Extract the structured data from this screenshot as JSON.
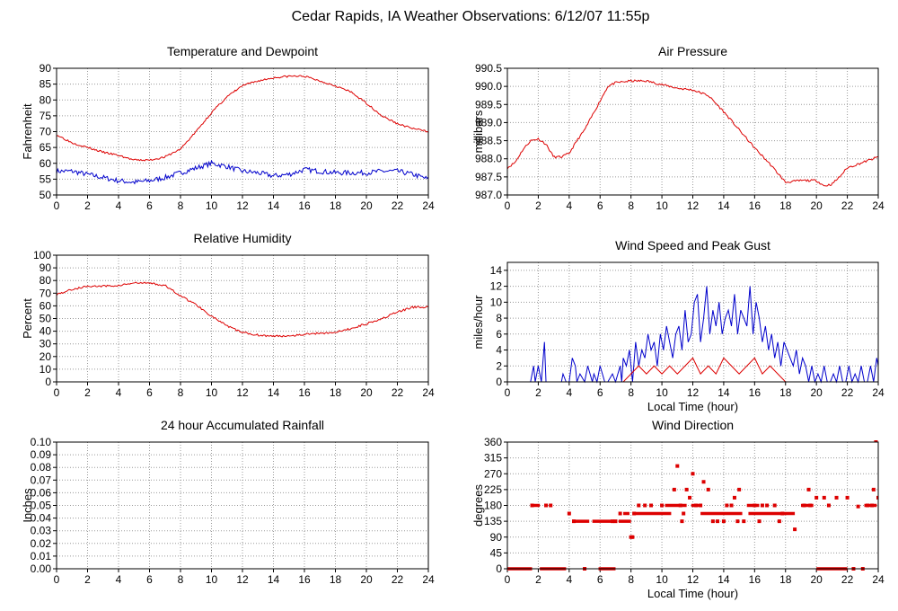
{
  "page": {
    "title": "Cedar Rapids, IA Weather Observations: 6/12/07 11:55p"
  },
  "colors": {
    "red": "#dd0000",
    "blue": "#0000cc",
    "grid": "#9a9a9a"
  },
  "chart_data": [
    {
      "id": "temperature",
      "type": "line",
      "title": "Temperature and Dewpoint",
      "xlabel": "",
      "ylabel": "Fahrenheit",
      "xlim": [
        0,
        24
      ],
      "ylim": [
        50,
        90
      ],
      "x_ticks": [
        0,
        2,
        4,
        6,
        8,
        10,
        12,
        14,
        16,
        18,
        20,
        22,
        24
      ],
      "y_ticks": [
        50,
        55,
        60,
        65,
        70,
        75,
        80,
        85,
        90
      ],
      "y_decimals": 0,
      "grid": true,
      "series": [
        {
          "color": "#dd0000",
          "noise": 0.3,
          "seed": 3,
          "x": [
            0,
            1,
            2,
            3,
            4,
            5,
            6,
            7,
            8,
            9,
            10,
            11,
            12,
            13,
            14,
            15,
            16,
            17,
            18,
            19,
            20,
            21,
            22,
            23,
            24
          ],
          "values": [
            69,
            66.5,
            65,
            63.5,
            62.5,
            61,
            61,
            62,
            64.5,
            70,
            76,
            81,
            84.5,
            86,
            87,
            87.5,
            87.5,
            86,
            84.5,
            82.5,
            79,
            75,
            72.5,
            71,
            70
          ]
        },
        {
          "color": "#0000cc",
          "noise": 0.8,
          "seed": 7,
          "x": [
            0,
            1,
            2,
            3,
            4,
            5,
            6,
            7,
            8,
            9,
            10,
            11,
            12,
            13,
            14,
            15,
            16,
            17,
            18,
            19,
            20,
            21,
            22,
            23,
            24
          ],
          "values": [
            57.5,
            57.5,
            56.5,
            55.5,
            54.5,
            54,
            54.5,
            55.5,
            57,
            58.5,
            60,
            59,
            57.5,
            57,
            56,
            56.5,
            58,
            57.5,
            57,
            57,
            57,
            57.5,
            57.5,
            56.5,
            55
          ]
        }
      ]
    },
    {
      "id": "pressure",
      "type": "line",
      "title": "Air Pressure",
      "xlabel": "",
      "ylabel": "millibars",
      "xlim": [
        0,
        24
      ],
      "ylim": [
        987.0,
        990.5
      ],
      "x_ticks": [
        0,
        2,
        4,
        6,
        8,
        10,
        12,
        14,
        16,
        18,
        20,
        22,
        24
      ],
      "y_ticks": [
        987.0,
        987.5,
        988.0,
        988.5,
        989.0,
        989.5,
        990.0,
        990.5
      ],
      "y_decimals": 1,
      "grid": true,
      "series": [
        {
          "color": "#dd0000",
          "noise": 0.03,
          "seed": 11,
          "x": [
            0,
            0.5,
            1,
            1.5,
            2,
            2.5,
            3,
            3.5,
            4,
            4.5,
            5,
            5.5,
            6,
            6.5,
            7,
            8,
            9,
            10,
            11,
            12,
            13,
            14,
            15,
            16,
            17,
            18,
            19,
            20,
            20.5,
            21,
            21.5,
            22,
            23,
            24
          ],
          "values": [
            987.75,
            987.9,
            988.25,
            988.5,
            988.55,
            988.4,
            988.05,
            988.05,
            988.15,
            988.5,
            988.8,
            989.2,
            989.6,
            990.0,
            990.1,
            990.15,
            990.15,
            990.05,
            989.95,
            989.9,
            989.75,
            989.3,
            988.8,
            988.3,
            987.85,
            987.35,
            987.4,
            987.4,
            987.25,
            987.3,
            987.5,
            987.75,
            987.9,
            988.05
          ]
        }
      ]
    },
    {
      "id": "humidity",
      "type": "line",
      "title": "Relative Humidity",
      "xlabel": "",
      "ylabel": "Percent",
      "xlim": [
        0,
        24
      ],
      "ylim": [
        0,
        100
      ],
      "x_ticks": [
        0,
        2,
        4,
        6,
        8,
        10,
        12,
        14,
        16,
        18,
        20,
        22,
        24
      ],
      "y_ticks": [
        0,
        10,
        20,
        30,
        40,
        50,
        60,
        70,
        80,
        90,
        100
      ],
      "y_decimals": 0,
      "grid": true,
      "series": [
        {
          "color": "#dd0000",
          "noise": 0.8,
          "seed": 5,
          "x": [
            0,
            1,
            2,
            3,
            4,
            5,
            6,
            7,
            8,
            9,
            10,
            11,
            12,
            13,
            14,
            15,
            16,
            17,
            18,
            19,
            20,
            21,
            22,
            23,
            24
          ],
          "values": [
            69,
            73,
            75.5,
            75.5,
            76,
            78,
            78,
            76,
            68,
            61,
            52,
            44,
            39,
            37,
            36,
            36.5,
            37.5,
            38.5,
            39,
            42,
            46,
            50,
            55,
            59,
            59
          ]
        }
      ]
    },
    {
      "id": "wind-speed",
      "type": "line",
      "title": "Wind Speed and Peak Gust",
      "xlabel": "Local Time (hour)",
      "ylabel": "miles/hour",
      "xlim": [
        0,
        24
      ],
      "ylim": [
        0,
        15
      ],
      "x_ticks": [
        0,
        2,
        4,
        6,
        8,
        10,
        12,
        14,
        16,
        18,
        20,
        22,
        24
      ],
      "y_ticks": [
        0,
        2,
        4,
        6,
        8,
        10,
        12,
        14
      ],
      "y_decimals": 0,
      "grid": true,
      "series": [
        {
          "color": "#0000cc",
          "noise": 0,
          "seed": 0,
          "x": [
            0,
            1.5,
            1.6,
            1.7,
            1.8,
            2.0,
            2.2,
            2.4,
            2.5,
            2.6,
            3.0,
            3.5,
            3.6,
            3.8,
            4.0,
            4.2,
            4.4,
            4.5,
            4.7,
            5.0,
            5.2,
            5.5,
            5.6,
            5.8,
            6.0,
            6.3,
            6.5,
            6.8,
            7.0,
            7.3,
            7.4,
            7.5,
            7.7,
            7.9,
            8.1,
            8.3,
            8.5,
            8.7,
            8.9,
            9.1,
            9.3,
            9.5,
            9.7,
            9.9,
            10.1,
            10.3,
            10.5,
            10.7,
            10.9,
            11.1,
            11.3,
            11.5,
            11.7,
            11.9,
            12.1,
            12.3,
            12.5,
            12.7,
            12.9,
            13.1,
            13.3,
            13.5,
            13.7,
            13.9,
            14.1,
            14.3,
            14.5,
            14.7,
            14.9,
            15.1,
            15.3,
            15.5,
            15.7,
            15.9,
            16.1,
            16.3,
            16.5,
            16.7,
            16.9,
            17.1,
            17.3,
            17.5,
            17.7,
            17.9,
            18.1,
            18.3,
            18.5,
            18.7,
            18.9,
            19.1,
            19.3,
            19.5,
            19.7,
            19.9,
            20.1,
            20.3,
            20.5,
            20.7,
            20.9,
            21.1,
            21.3,
            21.5,
            21.7,
            21.9,
            22.1,
            22.3,
            22.5,
            22.7,
            22.9,
            23.1,
            23.3,
            23.5,
            23.7,
            23.9,
            24
          ],
          "values": [
            0,
            0,
            1,
            2,
            0,
            2,
            0,
            5,
            0,
            0,
            0,
            0,
            1,
            0,
            0,
            3,
            2,
            0,
            1,
            0,
            2,
            0,
            1,
            0,
            2,
            0,
            0,
            1,
            0,
            2,
            0,
            3,
            2,
            4,
            0,
            5,
            2,
            4,
            3,
            6,
            4,
            5,
            2,
            6,
            4,
            7,
            5,
            3,
            6,
            7,
            4,
            9,
            5,
            6,
            10,
            11,
            5,
            8,
            12,
            6,
            9,
            7,
            10,
            6,
            8,
            9,
            7,
            11,
            6,
            9,
            8,
            7,
            12,
            6,
            10,
            8,
            5,
            7,
            4,
            6,
            3,
            5,
            2,
            5,
            4,
            3,
            2,
            4,
            1,
            3,
            2,
            0,
            2,
            0,
            1,
            0,
            2,
            0,
            0,
            1,
            0,
            2,
            0,
            0,
            2,
            0,
            1,
            0,
            2,
            0,
            0,
            2,
            0,
            3,
            2
          ]
        },
        {
          "color": "#dd0000",
          "noise": 0,
          "seed": 0,
          "x": [
            0,
            7.5,
            8.0,
            8.5,
            9.0,
            9.5,
            10.0,
            10.5,
            11.0,
            11.5,
            12.0,
            12.5,
            13.0,
            13.5,
            14.0,
            14.5,
            15.0,
            15.5,
            16.0,
            16.5,
            17.0,
            17.5,
            18.0,
            18.5,
            19.0,
            24
          ],
          "values": [
            0,
            0,
            1,
            2,
            1,
            2,
            1,
            2,
            1,
            2,
            3,
            1,
            2,
            1,
            3,
            2,
            1,
            2,
            3,
            1,
            2,
            1,
            0,
            0,
            0,
            0
          ]
        }
      ]
    },
    {
      "id": "rainfall",
      "type": "line",
      "title": "24 hour Accumulated Rainfall",
      "xlabel": "",
      "ylabel": "Inches",
      "xlim": [
        0,
        24
      ],
      "ylim": [
        0,
        0.1
      ],
      "x_ticks": [
        0,
        2,
        4,
        6,
        8,
        10,
        12,
        14,
        16,
        18,
        20,
        22,
        24
      ],
      "y_ticks": [
        0.0,
        0.01,
        0.02,
        0.03,
        0.04,
        0.05,
        0.06,
        0.07,
        0.08,
        0.09,
        0.1
      ],
      "y_decimals": 2,
      "grid": true,
      "series": [
        {
          "color": "#dd0000",
          "noise": 0,
          "seed": 0,
          "x": [
            0,
            24
          ],
          "values": [
            0,
            0
          ]
        }
      ]
    },
    {
      "id": "wind-direction",
      "type": "scatter",
      "title": "Wind Direction",
      "xlabel": "Local Time (hour)",
      "ylabel": "degrees",
      "xlim": [
        0,
        24
      ],
      "ylim": [
        0,
        360
      ],
      "x_ticks": [
        0,
        2,
        4,
        6,
        8,
        10,
        12,
        14,
        16,
        18,
        20,
        22,
        24
      ],
      "y_ticks": [
        0,
        45,
        90,
        135,
        180,
        225,
        270,
        315,
        360
      ],
      "y_decimals": 0,
      "grid": true,
      "series": [
        {
          "color": "#dd0000",
          "segments": [
            {
              "x0": 0.0,
              "x1": 1.6,
              "y": 0
            },
            {
              "x0": 1.6,
              "x1": 2.1,
              "y": 180
            },
            {
              "x0": 2.1,
              "x1": 3.8,
              "y": 0
            },
            {
              "x0": 4.2,
              "x1": 5.3,
              "y": 135
            },
            {
              "x0": 5.9,
              "x1": 7.0,
              "y": 0
            },
            {
              "x0": 5.5,
              "x1": 6.7,
              "y": 135
            },
            {
              "x0": 7.2,
              "x1": 8.0,
              "y": 135
            },
            {
              "x0": 7.5,
              "x1": 7.9,
              "y": 157
            },
            {
              "x0": 8.3,
              "x1": 10.6,
              "y": 157
            },
            {
              "x0": 10.2,
              "x1": 11.6,
              "y": 180
            },
            {
              "x0": 11.9,
              "x1": 12.4,
              "y": 180
            },
            {
              "x0": 12.5,
              "x1": 15.2,
              "y": 157
            },
            {
              "x0": 15.5,
              "x1": 16.3,
              "y": 180
            },
            {
              "x0": 15.6,
              "x1": 18.6,
              "y": 157
            },
            {
              "x0": 19.0,
              "x1": 19.8,
              "y": 180
            },
            {
              "x0": 20.0,
              "x1": 22.0,
              "y": 0
            },
            {
              "x0": 23.1,
              "x1": 23.9,
              "y": 180
            }
          ],
          "x": [
            1.6,
            2.5,
            2.8,
            4.0,
            4.3,
            5.0,
            6.8,
            7.0,
            7.3,
            8.0,
            8.1,
            8.2,
            8.5,
            8.9,
            9.3,
            10.0,
            10.8,
            11.0,
            11.2,
            11.3,
            11.4,
            11.6,
            11.8,
            12.0,
            12.2,
            12.5,
            12.7,
            13.0,
            13.3,
            13.6,
            14.0,
            14.2,
            14.5,
            14.7,
            14.9,
            15.0,
            15.3,
            16.0,
            16.3,
            16.5,
            16.8,
            17.3,
            17.6,
            17.8,
            18.6,
            19.2,
            19.5,
            19.6,
            20.0,
            20.5,
            20.8,
            21.3,
            22.0,
            22.4,
            22.7,
            23.0,
            23.3,
            23.6,
            23.7,
            23.85,
            24.0
          ],
          "values": [
            180,
            180,
            180,
            157,
            135,
            0,
            135,
            135,
            157,
            90,
            90,
            157,
            180,
            180,
            180,
            180,
            225,
            292,
            180,
            135,
            157,
            225,
            202,
            270,
            180,
            180,
            247,
            225,
            135,
            135,
            135,
            180,
            180,
            202,
            135,
            225,
            135,
            180,
            135,
            180,
            180,
            180,
            135,
            157,
            112,
            180,
            225,
            180,
            202,
            202,
            180,
            202,
            202,
            0,
            177,
            0,
            180,
            180,
            225,
            365,
            202
          ]
        }
      ]
    }
  ]
}
